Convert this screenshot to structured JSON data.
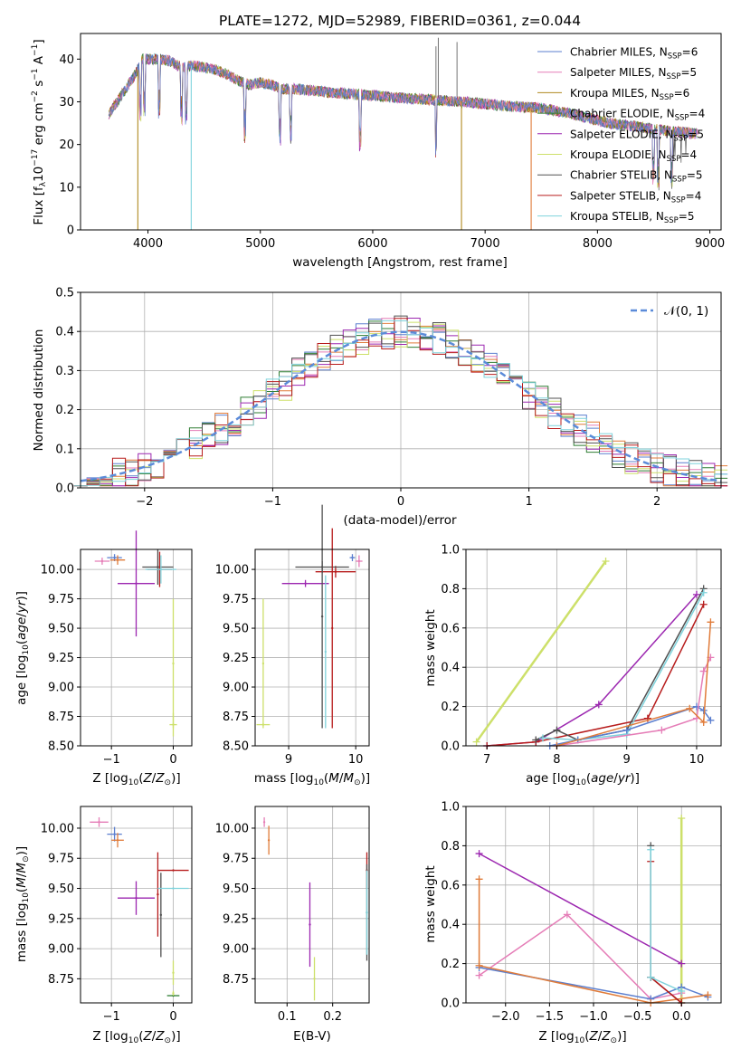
{
  "colors": {
    "cm": "#5b7fcf",
    "sm": "#e57db7",
    "km": "#b08a20",
    "ce": "#2e7d32",
    "se": "#9c27b0",
    "ke": "#cde06a",
    "cs": "#505050",
    "ss": "#b71c1c",
    "ks": "#7fd3dc",
    "gauss": "#5b8bd9",
    "orange": "#e07b39"
  },
  "chart_data": [
    {
      "id": "spectrum",
      "type": "line",
      "title": "PLATE=1272, MJD=52989, FIBERID=0361, z=0.044",
      "xlabel": "wavelength [Angstrom, rest frame]",
      "ylabel": "Flux [f_λ 10^-17 erg cm^-2 s^-1 A^-1]",
      "xlim": [
        3400,
        9100
      ],
      "ylim": [
        0,
        46
      ],
      "xticks": [
        "4000",
        "5000",
        "6000",
        "7000",
        "8000",
        "9000"
      ],
      "yticks": [
        "0",
        "10",
        "20",
        "30",
        "40"
      ],
      "legend": [
        {
          "name": "Chabrier MILES",
          "n": "6",
          "color": "cm"
        },
        {
          "name": "Salpeter MILES",
          "n": "5",
          "color": "sm"
        },
        {
          "name": "Kroupa MILES",
          "n": "6",
          "color": "km"
        },
        {
          "name": "Chabrier ELODIE",
          "n": "4",
          "color": "ce"
        },
        {
          "name": "Salpeter ELODIE",
          "n": "5",
          "color": "se"
        },
        {
          "name": "Kroupa ELODIE",
          "n": "4",
          "color": "ke"
        },
        {
          "name": "Chabrier STELIB",
          "n": "5",
          "color": "cs"
        },
        {
          "name": "Salpeter STELIB",
          "n": "4",
          "color": "ss"
        },
        {
          "name": "Kroupa STELIB",
          "n": "5",
          "color": "ks"
        }
      ],
      "continuum": [
        [
          3650,
          27
        ],
        [
          3700,
          29
        ],
        [
          3800,
          33
        ],
        [
          3900,
          37
        ],
        [
          3950,
          40
        ],
        [
          4000,
          40
        ],
        [
          4100,
          40
        ],
        [
          4200,
          39.5
        ],
        [
          4300,
          38
        ],
        [
          4400,
          38.5
        ],
        [
          4500,
          38
        ],
        [
          4600,
          37.5
        ],
        [
          4700,
          36.5
        ],
        [
          4800,
          35
        ],
        [
          4900,
          34
        ],
        [
          5000,
          34.5
        ],
        [
          5100,
          34
        ],
        [
          5200,
          33
        ],
        [
          5300,
          33
        ],
        [
          5500,
          32.5
        ],
        [
          5700,
          32
        ],
        [
          6000,
          31.5
        ],
        [
          6200,
          31
        ],
        [
          6500,
          30.5
        ],
        [
          6800,
          30
        ],
        [
          7000,
          29.5
        ],
        [
          7200,
          29
        ],
        [
          7500,
          28.5
        ],
        [
          7800,
          27
        ],
        [
          8100,
          25
        ],
        [
          8400,
          24
        ],
        [
          8700,
          23
        ],
        [
          8900,
          22.5
        ]
      ],
      "drops": [
        {
          "x": 3910,
          "y": 0,
          "color": "km"
        },
        {
          "x": 4385,
          "y": 0,
          "color": "ks"
        },
        {
          "x": 6790,
          "y": 0,
          "color": "km"
        },
        {
          "x": 7410,
          "y": 0,
          "color": "orange"
        }
      ]
    },
    {
      "id": "residuals",
      "type": "line",
      "xlabel": "(data-model)/error",
      "ylabel": "Normed distribution",
      "xlim": [
        -2.5,
        2.5
      ],
      "ylim": [
        0,
        0.5
      ],
      "xticks": [
        "−2",
        "−1",
        "0",
        "1",
        "2"
      ],
      "yticks": [
        "0.0",
        "0.1",
        "0.2",
        "0.3",
        "0.4",
        "0.5"
      ],
      "legend": "𝒩(0, 1)"
    },
    {
      "id": "age-z",
      "type": "scatter",
      "xlabel": "Z [log10(Z/Z⊙)]",
      "ylabel": "age [log10(age/yr)]",
      "xlim": [
        -1.5,
        0.3
      ],
      "ylim": [
        8.5,
        10.17
      ],
      "xticks": [
        "−1",
        "0"
      ],
      "yticks": [
        "8.50",
        "8.75",
        "9.00",
        "9.25",
        "9.50",
        "9.75",
        "10.00"
      ],
      "points": [
        {
          "x": -1.15,
          "y": 10.07,
          "xerr": 0.12,
          "yerr": 0.03,
          "color": "sm"
        },
        {
          "x": -0.95,
          "y": 10.1,
          "xerr": 0.12,
          "yerr": 0.03,
          "color": "cm"
        },
        {
          "x": -0.9,
          "y": 10.08,
          "xerr": 0.12,
          "yerr": 0.04,
          "color": "orange"
        },
        {
          "x": -0.6,
          "y": 9.88,
          "xerr": 0.3,
          "yerr": 0.45,
          "color": "se"
        },
        {
          "x": -0.25,
          "y": 10.02,
          "xerr": 0.25,
          "yerr": 0.15,
          "color": "cs"
        },
        {
          "x": -0.22,
          "y": 10.0,
          "xerr": 0.2,
          "yerr": 0.15,
          "color": "ss"
        },
        {
          "x": -0.2,
          "y": 10.0,
          "xerr": 0.25,
          "yerr": 0.12,
          "color": "ks"
        },
        {
          "x": 0.0,
          "y": 8.68,
          "xerr": 0.06,
          "yerr": 0.1,
          "color": "ke"
        },
        {
          "x": 0.0,
          "y": 9.2,
          "xerr": 0.0,
          "yerr": 0.55,
          "color": "ke"
        }
      ]
    },
    {
      "id": "age-mass",
      "type": "scatter",
      "xlabel": "mass [log10(M/M⊙)]",
      "ylabel": "",
      "xlim": [
        8.5,
        10.2
      ],
      "ylim": [
        8.5,
        10.17
      ],
      "xticks": [
        "9",
        "10"
      ],
      "yticks": [
        "8.50",
        "8.75",
        "9.00",
        "9.25",
        "9.50",
        "9.75",
        "10.00"
      ],
      "points": [
        {
          "x": 10.05,
          "y": 10.07,
          "xerr": 0.05,
          "yerr": 0.05,
          "color": "sm"
        },
        {
          "x": 9.95,
          "y": 10.1,
          "xerr": 0.04,
          "yerr": 0.03,
          "color": "cm"
        },
        {
          "x": 9.7,
          "y": 9.98,
          "xerr": 0.3,
          "yerr": 0.05,
          "color": "ss"
        },
        {
          "x": 9.5,
          "y": 10.02,
          "xerr": 0.4,
          "yerr": 0.05,
          "color": "cs"
        },
        {
          "x": 9.25,
          "y": 9.88,
          "xerr": 0.35,
          "yerr": 0.03,
          "color": "se"
        },
        {
          "x": 9.65,
          "y": 9.5,
          "xerr": 0.0,
          "yerr": 0.85,
          "color": "ss"
        },
        {
          "x": 9.5,
          "y": 9.6,
          "xerr": 0.0,
          "yerr": 0.95,
          "color": "cs"
        },
        {
          "x": 9.55,
          "y": 9.3,
          "xerr": 0.0,
          "yerr": 0.65,
          "color": "ks"
        },
        {
          "x": 8.62,
          "y": 8.68,
          "xerr": 0.1,
          "yerr": 0.0,
          "color": "ke"
        },
        {
          "x": 8.62,
          "y": 9.2,
          "xerr": 0.0,
          "yerr": 0.55,
          "color": "ke"
        }
      ]
    },
    {
      "id": "weight-age",
      "type": "line",
      "xlabel": "age [log10(age/yr)]",
      "ylabel": "mass weight",
      "xlim": [
        6.7,
        10.35
      ],
      "ylim": [
        0,
        1.0
      ],
      "xticks": [
        "7",
        "8",
        "9",
        "10"
      ],
      "yticks": [
        "0.0",
        "0.2",
        "0.4",
        "0.6",
        "0.8",
        "1.0"
      ],
      "series": [
        {
          "color": "ke",
          "x": [
            6.85,
            8.7
          ],
          "y": [
            0.02,
            0.94
          ]
        },
        {
          "color": "se",
          "x": [
            7.0,
            7.7,
            8.6,
            10.0
          ],
          "y": [
            0.0,
            0.02,
            0.21,
            0.77
          ]
        },
        {
          "color": "ss",
          "x": [
            7.0,
            7.7,
            9.3,
            10.1
          ],
          "y": [
            0.0,
            0.02,
            0.14,
            0.72
          ]
        },
        {
          "color": "cs",
          "x": [
            7.7,
            8.0,
            8.3,
            9.0,
            10.1
          ],
          "y": [
            0.03,
            0.08,
            0.03,
            0.08,
            0.8
          ]
        },
        {
          "color": "ks",
          "x": [
            7.8,
            8.3,
            9.0,
            10.1
          ],
          "y": [
            0.04,
            0.03,
            0.06,
            0.78
          ]
        },
        {
          "color": "cm",
          "x": [
            7.9,
            8.3,
            9.0,
            10.0,
            10.1,
            10.2
          ],
          "y": [
            0.0,
            0.03,
            0.08,
            0.2,
            0.18,
            0.13
          ]
        },
        {
          "color": "sm",
          "x": [
            8.0,
            9.5,
            10.0,
            10.1,
            10.2
          ],
          "y": [
            0.0,
            0.08,
            0.14,
            0.38,
            0.45
          ]
        },
        {
          "color": "orange",
          "x": [
            8.0,
            9.9,
            10.1,
            10.2
          ],
          "y": [
            0.0,
            0.19,
            0.12,
            0.63
          ]
        }
      ]
    },
    {
      "id": "mass-z",
      "type": "scatter",
      "xlabel": "Z [log10(Z/Z⊙)]",
      "ylabel": "mass [log10(M/M⊙)]",
      "xlim": [
        -1.5,
        0.3
      ],
      "ylim": [
        8.55,
        10.18
      ],
      "xticks": [
        "−1",
        "0"
      ],
      "yticks": [
        "8.75",
        "9.00",
        "9.25",
        "9.50",
        "9.75",
        "10.00"
      ],
      "points": [
        {
          "x": -1.2,
          "y": 10.05,
          "xerr": 0.15,
          "yerr": 0.04,
          "color": "sm"
        },
        {
          "x": -0.95,
          "y": 9.95,
          "xerr": 0.12,
          "yerr": 0.06,
          "color": "cm"
        },
        {
          "x": -0.9,
          "y": 9.9,
          "xerr": 0.1,
          "yerr": 0.06,
          "color": "orange"
        },
        {
          "x": -0.6,
          "y": 9.42,
          "xerr": 0.3,
          "yerr": 0.14,
          "color": "se"
        },
        {
          "x": -0.25,
          "y": 9.45,
          "xerr": 0.0,
          "yerr": 0.35,
          "color": "ss"
        },
        {
          "x": 0.0,
          "y": 9.65,
          "xerr": 0.25,
          "yerr": 0.0,
          "color": "ss"
        },
        {
          "x": -0.2,
          "y": 9.28,
          "xerr": 0.0,
          "yerr": 0.35,
          "color": "cs"
        },
        {
          "x": 0.0,
          "y": 9.5,
          "xerr": 0.25,
          "yerr": 0.0,
          "color": "ks"
        },
        {
          "x": 0.0,
          "y": 8.8,
          "xerr": 0.0,
          "yerr": 0.1,
          "color": "ke"
        },
        {
          "x": 0.0,
          "y": 8.61,
          "xerr": 0.1,
          "yerr": 0.0,
          "color": "ce"
        },
        {
          "x": 0.0,
          "y": 8.63,
          "xerr": 0.0,
          "yerr": 0.02,
          "color": "ke"
        }
      ]
    },
    {
      "id": "mass-ebv",
      "type": "scatter",
      "xlabel": "E(B-V)",
      "ylabel": "",
      "xlim": [
        0.03,
        0.28
      ],
      "ylim": [
        8.55,
        10.18
      ],
      "xticks": [
        "0.1",
        "0.2"
      ],
      "yticks": [
        "8.75",
        "9.00",
        "9.25",
        "9.50",
        "9.75",
        "10.00"
      ],
      "points": [
        {
          "x": 0.06,
          "y": 9.9,
          "xerr": 0.0,
          "yerr": 0.12,
          "color": "orange"
        },
        {
          "x": 0.05,
          "y": 10.05,
          "xerr": 0.0,
          "yerr": 0.04,
          "color": "sm"
        },
        {
          "x": 0.15,
          "y": 9.2,
          "xerr": 0.0,
          "yerr": 0.35,
          "color": "se"
        },
        {
          "x": 0.16,
          "y": 8.75,
          "xerr": 0.0,
          "yerr": 0.18,
          "color": "ke"
        },
        {
          "x": 0.275,
          "y": 9.65,
          "xerr": 0.0,
          "yerr": 0.15,
          "color": "ss"
        },
        {
          "x": 0.275,
          "y": 9.3,
          "xerr": 0.0,
          "yerr": 0.4,
          "color": "cs"
        },
        {
          "x": 0.275,
          "y": 9.3,
          "xerr": 0.0,
          "yerr": 0.35,
          "color": "ks"
        }
      ]
    },
    {
      "id": "weight-z",
      "type": "line",
      "xlabel": "Z [log10(Z/Z⊙)]",
      "ylabel": "mass weight",
      "xlim": [
        -2.45,
        0.45
      ],
      "ylim": [
        0,
        1.0
      ],
      "xticks": [
        "−2.0",
        "−1.5",
        "−1.0",
        "−0.5",
        "0.0"
      ],
      "yticks": [
        "0.0",
        "0.2",
        "0.4",
        "0.6",
        "0.8",
        "1.0"
      ],
      "series": [
        {
          "color": "ke",
          "x": [
            0.0,
            0.0
          ],
          "y": [
            0.0,
            0.94
          ]
        },
        {
          "color": "se",
          "x": [
            -2.3,
            0.0
          ],
          "y": [
            0.76,
            0.2
          ]
        },
        {
          "color": "sm",
          "x": [
            -2.3,
            -1.3,
            -0.35,
            0.0
          ],
          "y": [
            0.14,
            0.45,
            0.02,
            0.05
          ]
        },
        {
          "color": "cm",
          "x": [
            -2.3,
            -0.35,
            0.0,
            0.3
          ],
          "y": [
            0.18,
            0.02,
            0.08,
            0.03
          ]
        },
        {
          "color": "orange",
          "x": [
            -2.3,
            -2.3,
            -0.35,
            0.3
          ],
          "y": [
            0.63,
            0.19,
            0.0,
            0.04
          ]
        },
        {
          "color": "cs",
          "x": [
            -0.35,
            -0.35,
            0.0
          ],
          "y": [
            0.8,
            0.13,
            0.0
          ]
        },
        {
          "color": "ss",
          "x": [
            -0.35,
            -0.35,
            0.0
          ],
          "y": [
            0.72,
            0.13,
            0.0
          ]
        },
        {
          "color": "ks",
          "x": [
            -0.35,
            -0.35,
            0.0
          ],
          "y": [
            0.78,
            0.13,
            0.06
          ]
        }
      ]
    }
  ]
}
